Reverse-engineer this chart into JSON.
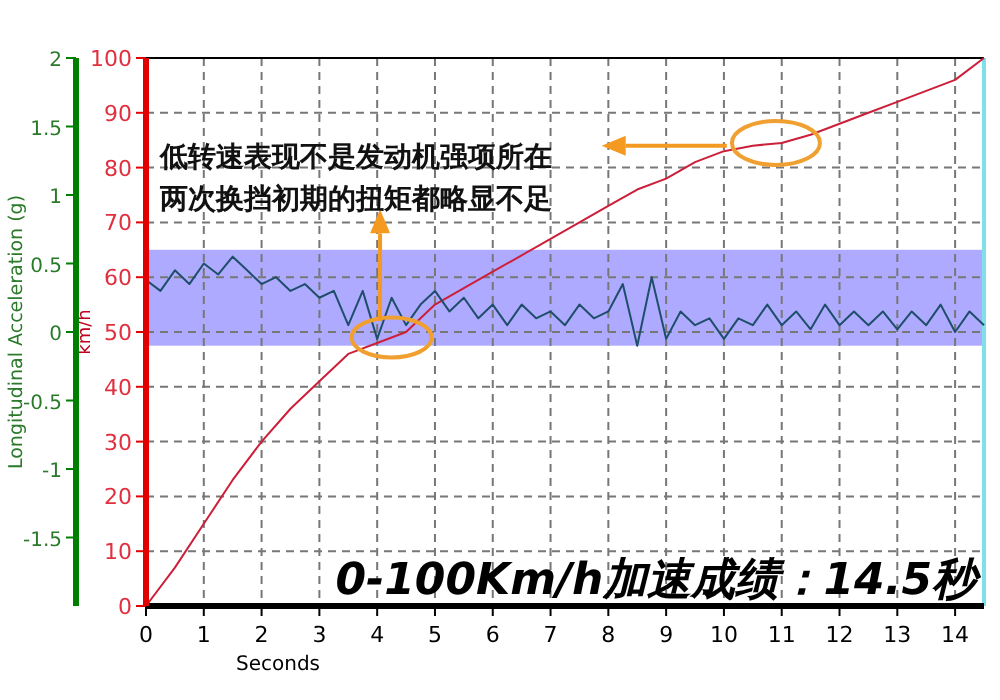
{
  "chart_data": {
    "type": "line",
    "xlabel": "Seconds",
    "ylabel": "km/h",
    "y2label": "Longitudinal Acceleration (g)",
    "xlim": [
      0,
      14.5
    ],
    "xticks": [
      0,
      1,
      2,
      3,
      4,
      5,
      6,
      7,
      8,
      9,
      10,
      11,
      12,
      13,
      14
    ],
    "ylim": [
      0,
      100
    ],
    "yticks": [
      0,
      10,
      20,
      30,
      40,
      50,
      60,
      70,
      80,
      90,
      100
    ],
    "y2lim": [
      -2,
      2
    ],
    "y2ticks": [
      -1.5,
      -1,
      -0.5,
      0,
      0.5,
      1,
      1.5,
      2
    ],
    "grid": true,
    "line_style": "solid",
    "bands": [
      {
        "axis": "y2",
        "from": -0.1,
        "to": 0.6,
        "color": "#aeaaff"
      }
    ],
    "series": [
      {
        "color": "#cc1f3a",
        "x": [
          0,
          0.5,
          1,
          1.5,
          2,
          2.5,
          3,
          3.5,
          4,
          4.5,
          5,
          5.5,
          6,
          6.5,
          7,
          7.5,
          8,
          8.5,
          9,
          9.5,
          10,
          10.5,
          11,
          11.5,
          12,
          12.5,
          13,
          13.5,
          14,
          14.5
        ],
        "values": [
          0,
          7,
          15,
          23,
          30,
          36,
          41,
          46,
          48,
          50,
          55,
          58,
          61,
          64,
          67,
          70,
          73,
          76,
          78,
          81,
          83,
          84,
          84.5,
          86,
          88,
          90,
          92,
          94,
          96,
          100
        ]
      },
      {
        "color": "#1f4e6a",
        "axis": "y2",
        "x": [
          0,
          0.25,
          0.5,
          0.75,
          1,
          1.25,
          1.5,
          1.75,
          2,
          2.25,
          2.5,
          2.75,
          3,
          3.25,
          3.5,
          3.75,
          4,
          4.25,
          4.5,
          4.75,
          5,
          5.25,
          5.5,
          5.75,
          6,
          6.25,
          6.5,
          6.75,
          7,
          7.25,
          7.5,
          7.75,
          8,
          8.25,
          8.5,
          8.75,
          9,
          9.25,
          9.5,
          9.75,
          10,
          10.25,
          10.5,
          10.75,
          11,
          11.25,
          11.5,
          11.75,
          12,
          12.25,
          12.5,
          12.75,
          13,
          13.25,
          13.5,
          13.75,
          14,
          14.25,
          14.5
        ],
        "values": [
          0.38,
          0.3,
          0.45,
          0.35,
          0.5,
          0.42,
          0.55,
          0.45,
          0.35,
          0.4,
          0.3,
          0.35,
          0.25,
          0.3,
          0.05,
          0.3,
          -0.05,
          0.25,
          0.05,
          0.2,
          0.3,
          0.15,
          0.25,
          0.1,
          0.2,
          0.05,
          0.2,
          0.1,
          0.15,
          0.05,
          0.2,
          0.1,
          0.15,
          0.35,
          -0.1,
          0.4,
          -0.05,
          0.15,
          0.05,
          0.1,
          -0.05,
          0.1,
          0.05,
          0.2,
          0.05,
          0.15,
          0.02,
          0.2,
          0.05,
          0.15,
          0.05,
          0.15,
          0.02,
          0.15,
          0.05,
          0.2,
          0,
          0.15,
          0.05
        ]
      }
    ],
    "annotations": [
      {
        "text": "低转速表现不是发动机强项所在两次换挡初期的扭矩都略显不足",
        "x": 4.05,
        "y": 52
      },
      "0-100Km/h加速成绩：14.5秒"
    ]
  }
}
